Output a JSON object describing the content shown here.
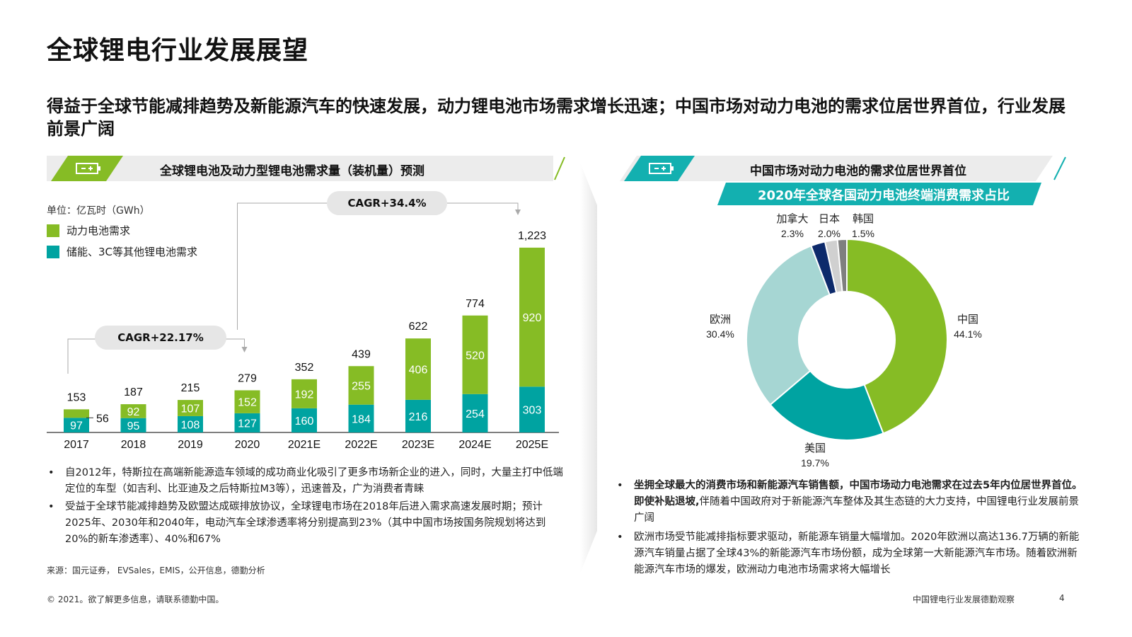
{
  "title": "全球锂电行业发展展望",
  "subtitle": "得益于全球节能减排趋势及新能源汽车的快速发展，动力锂电池市场需求增长迅速；中国市场对动力电池的需求位居世界首位，行业发展前景广阔",
  "colors": {
    "green": "#86bc25",
    "teal": "#00a3a1",
    "light_teal": "#a6d6d3",
    "navy": "#0d2a6b",
    "light_gray": "#d0d0d0",
    "dark_gray": "#7f7f7f",
    "banner": "#13b0b0"
  },
  "left_panel": {
    "header": "全球锂电池及动力型锂电池需求量（装机量）预测",
    "icon": "battery-icon",
    "unit": "单位：亿瓦时（GWh）",
    "legend": [
      "动力电池需求",
      "储能、3C等其他锂电池需求"
    ],
    "cagr1": "CAGR+22.17%",
    "cagr2": "CAGR+34.4%",
    "bullets": [
      "自2012年，特斯拉在高端新能源造车领域的成功商业化吸引了更多市场新企业的进入，同时，大量主打中低端定位的车型（如吉利、比亚迪及之后特斯拉M3等），迅速普及，广为消费者青睐",
      "受益于全球节能减排趋势及欧盟达成碳排放协议，全球锂电市场在2018年后进入需求高速发展时期；预计2025年、2030年和2040年，电动汽车全球渗透率将分别提高到23%（其中中国市场按国务院规划将达到20%的新车渗透率）、40%和67%"
    ],
    "source": "来源：国元证券， EVSales，EMIS，公开信息，德勤分析"
  },
  "right_panel": {
    "header": "中国市场对动力电池的需求位居世界首位",
    "icon": "battery-icon",
    "subbanner": "2020年全球各国动力电池终端消费需求占比",
    "bullet1_bold": "坐拥全球最大的消费市场和新能源汽车销售额，中国市场动力电池需求在过去5年内位居世界首位。即使补贴退坡,",
    "bullet1_rest": "伴随着中国政府对于新能源汽车整体及其生态链的大力支持，中国锂电行业发展前景广阔",
    "bullet2": "欧洲市场受节能减排指标要求驱动，新能源车销量大幅增加。2020年欧洲以高达136.7万辆的新能源汽车销量占据了全球43%的新能源汽车市场份额，成为全球第一大新能源汽车市场。随着欧洲新能源汽车市场的爆发，欧洲动力电池市场需求将大幅增长"
  },
  "chart_data": [
    {
      "type": "bar",
      "stacked": true,
      "title": "全球锂电池及动力型锂电池需求量（装机量）预测",
      "ylabel": "单位：亿瓦时（GWh）",
      "categories": [
        "2017",
        "2018",
        "2019",
        "2020",
        "2021E",
        "2022E",
        "2023E",
        "2024E",
        "2025E"
      ],
      "series": [
        {
          "name": "储能、3C等其他锂电池需求",
          "values": [
            97,
            95,
            108,
            127,
            160,
            184,
            216,
            254,
            303
          ]
        },
        {
          "name": "动力电池需求",
          "values": [
            56,
            92,
            107,
            152,
            192,
            255,
            406,
            520,
            920
          ]
        }
      ],
      "totals": [
        "153",
        "187",
        "215",
        "279",
        "352",
        "439",
        "622",
        "774",
        "1,223"
      ],
      "annotations": [
        "CAGR+22.17%",
        "CAGR+34.4%"
      ],
      "legend": "top-left",
      "ylim": [
        0,
        1250
      ]
    },
    {
      "type": "pie",
      "donut": true,
      "title": "2020年全球各国动力电池终端消费需求占比",
      "slices": [
        {
          "label": "中国",
          "value": 44.1,
          "display": "44.1%"
        },
        {
          "label": "美国",
          "value": 19.7,
          "display": "19.7%"
        },
        {
          "label": "欧洲",
          "value": 30.4,
          "display": "30.4%"
        },
        {
          "label": "加拿大",
          "value": 2.3,
          "display": "2.3%"
        },
        {
          "label": "日本",
          "value": 2.0,
          "display": "2.0%"
        },
        {
          "label": "韩国",
          "value": 1.5,
          "display": "1.5%"
        }
      ]
    }
  ],
  "footer": {
    "copyright": "© 2021。欲了解更多信息，请联系德勤中国。",
    "report": "中国锂电行业发展德勤观察",
    "page": "4"
  }
}
